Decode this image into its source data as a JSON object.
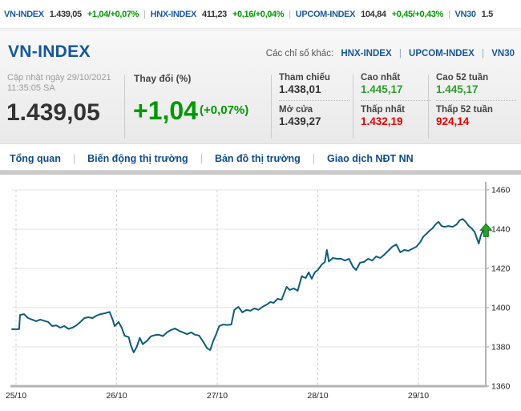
{
  "ui": {
    "separator": "|"
  },
  "colors": {
    "up": "#009900",
    "stat_up": "#2e9e2e",
    "stat_down": "#e60000",
    "neutral": "#333333",
    "link_blue": "#15579a",
    "line": "#0d5c7d",
    "marker_green": "#2ba02b"
  },
  "ticker": {
    "items": [
      {
        "name": "VN-INDEX",
        "value": "1.439,05",
        "change": "+1,04/+0,07%"
      },
      {
        "name": "HNX-INDEX",
        "value": "411,23",
        "change": "+0,16/+0,04%"
      },
      {
        "name": "UPCOM-INDEX",
        "value": "104,84",
        "change": "+0,45/+0,43%"
      },
      {
        "name": "VN30",
        "value": "1.5",
        "change": ""
      }
    ]
  },
  "header": {
    "title": "VN-INDEX",
    "other_indices_label": "Các chỉ số khác:",
    "other_indices": [
      "HNX-INDEX",
      "UPCOM-INDEX",
      "VN30"
    ]
  },
  "summary": {
    "updated_label": "Cập nhật ngày 29/10/2021",
    "updated_time": "11:35:05 SA",
    "index_value": "1.439,05",
    "change_label": "Thay đổi (%)",
    "change_value": "+1,04",
    "change_percent": "(+0,07%)",
    "stats": [
      {
        "label": "Tham chiếu",
        "value": "1.438,01",
        "color": "#333333"
      },
      {
        "label": "Mở cửa",
        "value": "1.439,27",
        "color": "#333333"
      },
      {
        "label": "Cao nhất",
        "value": "1.445,17",
        "color": "#2e9e2e"
      },
      {
        "label": "Thấp nhất",
        "value": "1.432,19",
        "color": "#e60000"
      },
      {
        "label": "Cao 52 tuần",
        "value": "1.445,17",
        "color": "#2e9e2e"
      },
      {
        "label": "Thấp 52 tuần",
        "value": "924,14",
        "color": "#e60000"
      }
    ]
  },
  "tabs": [
    {
      "label": "Tổng quan",
      "active": true
    },
    {
      "label": "Biến động thị trường",
      "active": false
    },
    {
      "label": "Bản đồ thị trường",
      "active": false
    },
    {
      "label": "Giao dịch NĐT NN",
      "active": false
    }
  ],
  "chart_data": {
    "type": "line",
    "title": "",
    "xlabel": "",
    "ylabel": "",
    "x_ticks": [
      "25/10",
      "26/10",
      "27/10",
      "28/10",
      "29/10"
    ],
    "y_ticks": [
      1360,
      1380,
      1400,
      1420,
      1440,
      1460
    ],
    "ylim": [
      1360,
      1460
    ],
    "grid": true,
    "legend_position": "none",
    "line_color": "#0d5c7d",
    "marker": {
      "type": "up-arrow",
      "color": "#2ba02b",
      "value": 1439.05
    },
    "points": [
      [
        -0.04,
        1389.0
      ],
      [
        0.03,
        1389.0
      ],
      [
        0.04,
        1396.3
      ],
      [
        0.08,
        1396.7
      ],
      [
        0.12,
        1394.7
      ],
      [
        0.16,
        1393.9
      ],
      [
        0.2,
        1393.1
      ],
      [
        0.24,
        1393.9
      ],
      [
        0.28,
        1393.3
      ],
      [
        0.32,
        1392.7
      ],
      [
        0.36,
        1390.6
      ],
      [
        0.4,
        1391.0
      ],
      [
        0.44,
        1389.8
      ],
      [
        0.48,
        1390.6
      ],
      [
        0.52,
        1389.2
      ],
      [
        0.56,
        1389.8
      ],
      [
        0.6,
        1391.0
      ],
      [
        0.64,
        1392.7
      ],
      [
        0.68,
        1394.7
      ],
      [
        0.72,
        1395.1
      ],
      [
        0.76,
        1394.7
      ],
      [
        0.8,
        1395.9
      ],
      [
        0.84,
        1396.7
      ],
      [
        0.88,
        1397.1
      ],
      [
        0.93,
        1397.8
      ],
      [
        0.96,
        1394.0
      ],
      [
        0.98,
        1390.6
      ],
      [
        1.02,
        1392.7
      ],
      [
        1.05,
        1389.8
      ],
      [
        1.08,
        1385.7
      ],
      [
        1.12,
        1385.0
      ],
      [
        1.14,
        1381.0
      ],
      [
        1.17,
        1377.2
      ],
      [
        1.2,
        1380.0
      ],
      [
        1.23,
        1384.6
      ],
      [
        1.26,
        1381.4
      ],
      [
        1.3,
        1383.0
      ],
      [
        1.34,
        1385.4
      ],
      [
        1.38,
        1386.0
      ],
      [
        1.42,
        1386.2
      ],
      [
        1.46,
        1385.5
      ],
      [
        1.5,
        1387.4
      ],
      [
        1.54,
        1388.6
      ],
      [
        1.58,
        1389.4
      ],
      [
        1.62,
        1388.2
      ],
      [
        1.66,
        1387.4
      ],
      [
        1.7,
        1386.5
      ],
      [
        1.74,
        1387.4
      ],
      [
        1.78,
        1386.2
      ],
      [
        1.82,
        1385.8
      ],
      [
        1.86,
        1382.7
      ],
      [
        1.9,
        1379.3
      ],
      [
        1.93,
        1378.4
      ],
      [
        1.96,
        1383.0
      ],
      [
        1.99,
        1386.5
      ],
      [
        2.02,
        1390.6
      ],
      [
        2.06,
        1391.4
      ],
      [
        2.1,
        1391.2
      ],
      [
        2.14,
        1391.4
      ],
      [
        2.17,
        1398.8
      ],
      [
        2.21,
        1400.4
      ],
      [
        2.25,
        1397.6
      ],
      [
        2.29,
        1398.8
      ],
      [
        2.33,
        1398.4
      ],
      [
        2.37,
        1399.6
      ],
      [
        2.41,
        1398.9
      ],
      [
        2.45,
        1400.4
      ],
      [
        2.49,
        1401.5
      ],
      [
        2.53,
        1402.9
      ],
      [
        2.56,
        1402.4
      ],
      [
        2.6,
        1404.5
      ],
      [
        2.64,
        1404.0
      ],
      [
        2.69,
        1410.6
      ],
      [
        2.72,
        1409.0
      ],
      [
        2.76,
        1409.8
      ],
      [
        2.8,
        1408.6
      ],
      [
        2.84,
        1416.0
      ],
      [
        2.88,
        1415.1
      ],
      [
        2.91,
        1418.0
      ],
      [
        2.94,
        1414.7
      ],
      [
        2.97,
        1418.0
      ],
      [
        3.0,
        1419.2
      ],
      [
        3.04,
        1422.0
      ],
      [
        3.07,
        1423.3
      ],
      [
        3.09,
        1429.4
      ],
      [
        3.11,
        1423.5
      ],
      [
        3.15,
        1425.3
      ],
      [
        3.19,
        1424.9
      ],
      [
        3.23,
        1424.9
      ],
      [
        3.27,
        1424.0
      ],
      [
        3.31,
        1424.9
      ],
      [
        3.35,
        1420.8
      ],
      [
        3.38,
        1419.2
      ],
      [
        3.42,
        1422.9
      ],
      [
        3.46,
        1423.3
      ],
      [
        3.5,
        1424.9
      ],
      [
        3.54,
        1424.0
      ],
      [
        3.58,
        1426.1
      ],
      [
        3.62,
        1425.3
      ],
      [
        3.66,
        1426.9
      ],
      [
        3.7,
        1429.0
      ],
      [
        3.74,
        1431.0
      ],
      [
        3.78,
        1432.2
      ],
      [
        3.82,
        1428.2
      ],
      [
        3.86,
        1429.4
      ],
      [
        3.9,
        1429.0
      ],
      [
        3.94,
        1430.0
      ],
      [
        3.98,
        1431.0
      ],
      [
        4.02,
        1433.5
      ],
      [
        4.05,
        1436.3
      ],
      [
        4.08,
        1437.6
      ],
      [
        4.11,
        1439.2
      ],
      [
        4.14,
        1440.4
      ],
      [
        4.17,
        1442.4
      ],
      [
        4.2,
        1443.7
      ],
      [
        4.23,
        1441.6
      ],
      [
        4.26,
        1441.2
      ],
      [
        4.3,
        1441.6
      ],
      [
        4.34,
        1441.2
      ],
      [
        4.38,
        1442.4
      ],
      [
        4.41,
        1444.5
      ],
      [
        4.44,
        1445.2
      ],
      [
        4.47,
        1443.7
      ],
      [
        4.5,
        1441.6
      ],
      [
        4.53,
        1440.4
      ],
      [
        4.56,
        1438.4
      ],
      [
        4.58,
        1435.5
      ],
      [
        4.6,
        1432.6
      ],
      [
        4.62,
        1436.7
      ],
      [
        4.64,
        1439.1
      ]
    ]
  }
}
